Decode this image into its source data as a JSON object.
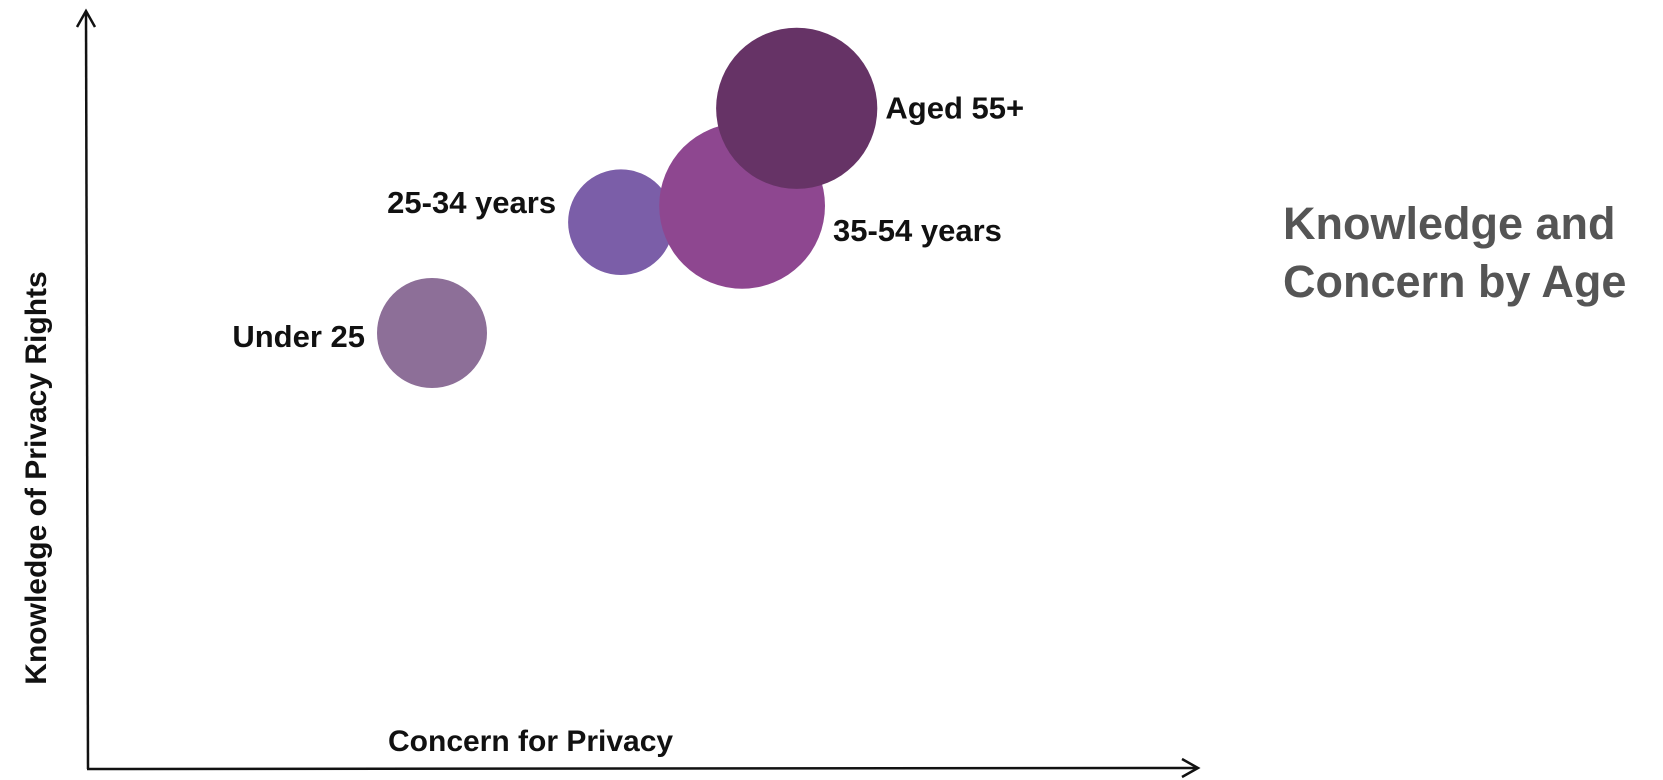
{
  "title": {
    "line1": "Knowledge and",
    "line2": "Concern by Age"
  },
  "chart_data": {
    "type": "bubble",
    "xlabel": "Concern for Privacy",
    "ylabel": "Knowledge of Privacy Rights",
    "x_ticks": "none",
    "y_ticks": "none",
    "grid": false,
    "legend": "none",
    "series": [
      {
        "name": "Under 25",
        "x": 31.5,
        "y": 55.9,
        "size": 1.0,
        "color": "#8d6f98",
        "label_side": "left"
      },
      {
        "name": "25-34 years",
        "x": 48.8,
        "y": 70.1,
        "size": 0.92,
        "color": "#7b5ea8",
        "label_side": "left"
      },
      {
        "name": "35-54 years",
        "x": 59.9,
        "y": 72.2,
        "size": 2.27,
        "color": "#8e4790",
        "label_side": "right"
      },
      {
        "name": "Aged 55+",
        "x": 64.9,
        "y": 84.7,
        "size": 2.15,
        "color": "#663366",
        "label_side": "right"
      }
    ]
  }
}
